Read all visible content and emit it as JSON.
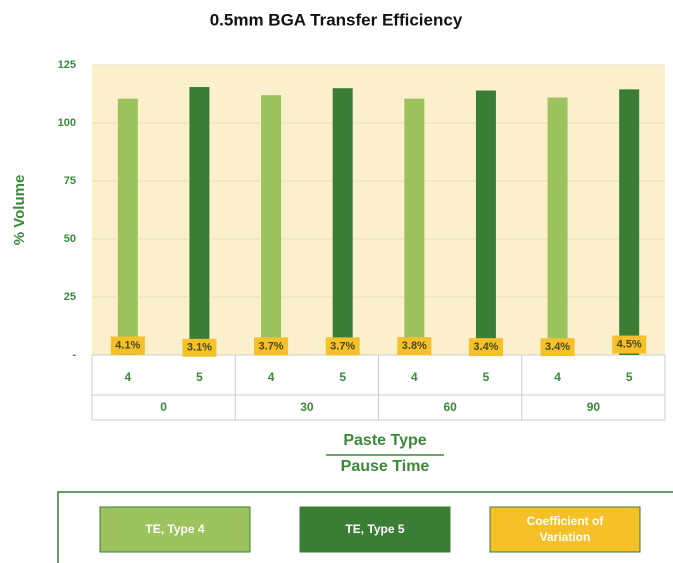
{
  "chart_data": {
    "type": "bar",
    "title": "0.5mm BGA Transfer Efficiency",
    "ylabel": "% Volume",
    "xlabel": "Paste Type",
    "xlabel2": "Pause Time",
    "categories": [
      "4",
      "5",
      "4",
      "5",
      "4",
      "5",
      "4",
      "5"
    ],
    "groups": [
      "0",
      "30",
      "60",
      "90"
    ],
    "series": [
      {
        "name": "TE, Type 4",
        "color": "#9dc35f",
        "values": [
          110.5,
          null,
          112,
          null,
          110.5,
          null,
          111,
          null
        ]
      },
      {
        "name": "TE, Type 5",
        "color": "#3a7d35",
        "values": [
          null,
          115.5,
          null,
          115,
          null,
          114,
          null,
          114.5
        ]
      },
      {
        "name": "Coefficient of Variation",
        "color": "#f5c028",
        "values": [
          4.1,
          3.1,
          3.7,
          3.7,
          3.8,
          3.4,
          3.4,
          4.5
        ],
        "value_labels": [
          "4.1%",
          "3.1%",
          "3.7%",
          "3.7%",
          "3.8%",
          "3.4%",
          "3.4%",
          "4.5%"
        ]
      }
    ],
    "ylim": [
      0,
      125
    ],
    "yticks": [
      {
        "value": 0,
        "label": "-"
      },
      25,
      50,
      75,
      100,
      125
    ],
    "grid": true
  }
}
